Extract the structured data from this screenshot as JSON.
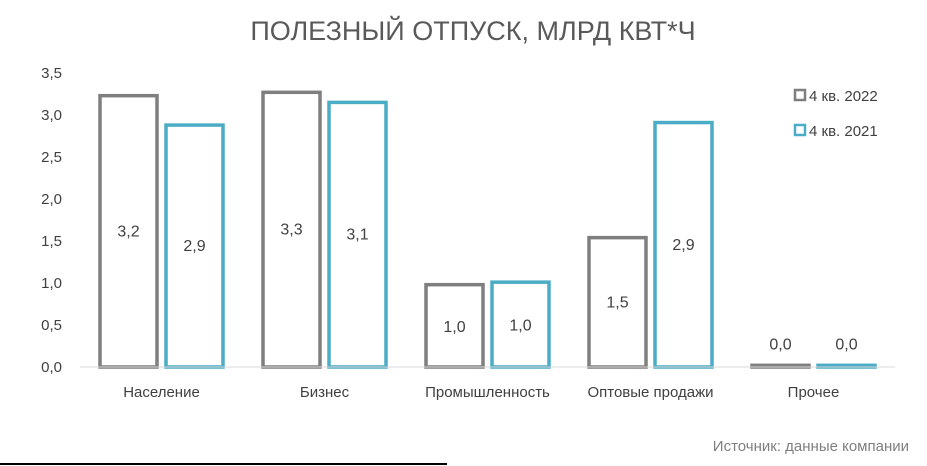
{
  "chart_data": {
    "type": "bar",
    "title": "ПОЛЕЗНЫЙ ОТПУСК, МЛРД КВТ*Ч",
    "categories": [
      "Население",
      "Бизнес",
      "Промышленность",
      "Оптовые продажи",
      "Прочее"
    ],
    "series": [
      {
        "name": "4 кв. 2022",
        "values": [
          3.23,
          3.27,
          0.98,
          1.54,
          0.02
        ],
        "labels": [
          "3,2",
          "3,3",
          "1,0",
          "1,5",
          "0,0"
        ],
        "color": "#7f7f7f"
      },
      {
        "name": "4 кв. 2021",
        "values": [
          2.88,
          3.15,
          1.01,
          2.91,
          0.02
        ],
        "labels": [
          "2,9",
          "3,1",
          "1,0",
          "2,9",
          "0,0"
        ],
        "color": "#4bacc6"
      }
    ],
    "yticks": [
      "0,0",
      "0,5",
      "1,0",
      "1,5",
      "2,0",
      "2,5",
      "3,0",
      "3,5"
    ],
    "ylim": [
      0,
      3.5
    ],
    "grid": false,
    "legend": "top-right",
    "source": "Источник: данные компании"
  }
}
